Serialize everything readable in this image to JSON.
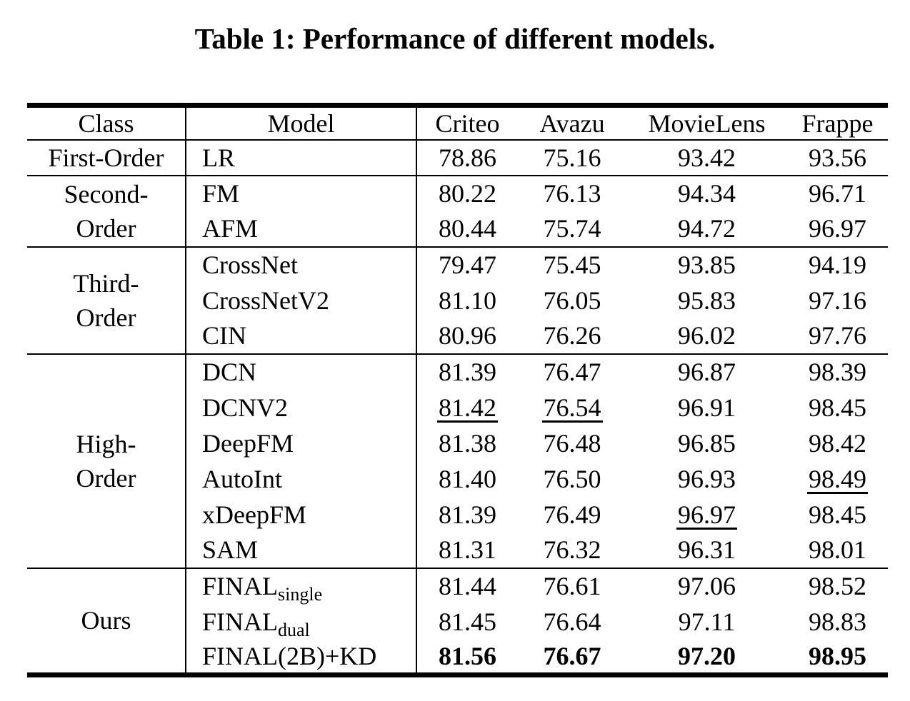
{
  "caption": "Table 1: Performance of different models.",
  "table": {
    "headers": {
      "class": "Class",
      "model": "Model",
      "datasets": [
        "Criteo",
        "Avazu",
        "MovieLens",
        "Frappe"
      ]
    },
    "groups": [
      {
        "class_lines": [
          "First-Order"
        ],
        "rows": [
          {
            "model": "LR",
            "values": [
              "78.86",
              "75.16",
              "93.42",
              "93.56"
            ]
          }
        ]
      },
      {
        "class_lines": [
          "Second-",
          "Order"
        ],
        "rows": [
          {
            "model": "FM",
            "values": [
              "80.22",
              "76.13",
              "94.34",
              "96.71"
            ]
          },
          {
            "model": "AFM",
            "values": [
              "80.44",
              "75.74",
              "94.72",
              "96.97"
            ]
          }
        ]
      },
      {
        "class_lines": [
          "Third-",
          "Order"
        ],
        "rows": [
          {
            "model": "CrossNet",
            "values": [
              "79.47",
              "75.45",
              "93.85",
              "94.19"
            ]
          },
          {
            "model": "CrossNetV2",
            "values": [
              "81.10",
              "76.05",
              "95.83",
              "97.16"
            ]
          },
          {
            "model": "CIN",
            "values": [
              "80.96",
              "76.26",
              "96.02",
              "97.76"
            ]
          }
        ]
      },
      {
        "class_lines": [
          "High-",
          "Order"
        ],
        "rows": [
          {
            "model": "DCN",
            "values": [
              "81.39",
              "76.47",
              "96.87",
              "98.39"
            ]
          },
          {
            "model": "DCNV2",
            "values": [
              "81.42",
              "76.54",
              "96.91",
              "98.45"
            ],
            "underline_columns": [
              "Criteo",
              "Avazu"
            ]
          },
          {
            "model": "DeepFM",
            "values": [
              "81.38",
              "76.48",
              "96.85",
              "98.42"
            ]
          },
          {
            "model": "AutoInt",
            "values": [
              "81.40",
              "76.50",
              "96.93",
              "98.49"
            ],
            "underline_columns": [
              "Frappe"
            ]
          },
          {
            "model": "xDeepFM",
            "values": [
              "81.39",
              "76.49",
              "96.97",
              "98.45"
            ],
            "underline_columns": [
              "MovieLens"
            ]
          },
          {
            "model": "SAM",
            "values": [
              "81.31",
              "76.32",
              "96.31",
              "98.01"
            ]
          }
        ]
      },
      {
        "class_lines": [
          "Ours"
        ],
        "rows": [
          {
            "model": "FINAL",
            "model_sub": "single",
            "values": [
              "81.44",
              "76.61",
              "97.06",
              "98.52"
            ]
          },
          {
            "model": "FINAL",
            "model_sub": "dual",
            "values": [
              "81.45",
              "76.64",
              "97.11",
              "98.83"
            ]
          },
          {
            "model": "FINAL(2B)+KD",
            "values": [
              "81.56",
              "76.67",
              "97.20",
              "98.95"
            ],
            "bold_columns": [
              "Criteo",
              "Avazu",
              "MovieLens",
              "Frappe"
            ]
          }
        ]
      }
    ]
  }
}
